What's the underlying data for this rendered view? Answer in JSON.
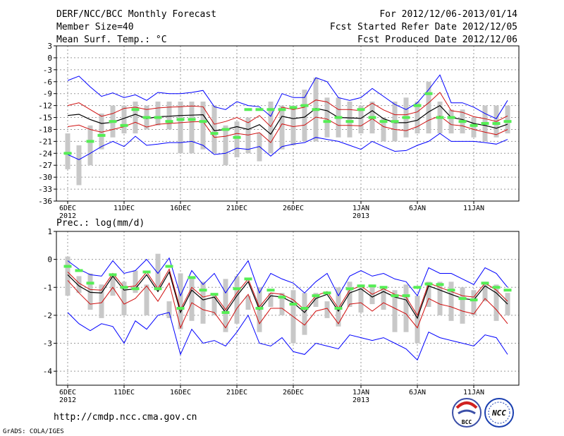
{
  "header": {
    "title": "DERF/NCC/BCC Monthly Forecast",
    "member_size": "Member Size=40",
    "variable_1": "Mean Surf. Temp.: °C",
    "for_range": "For 2012/12/06-2013/01/14",
    "fcst_started": "Fcst Started Refer Date 2012/12/05",
    "fcst_produced": "Fcst Produced Date 2012/12/06"
  },
  "footer": {
    "url": "http://cmdp.ncc.cma.gov.cn",
    "credit": "GrADS: COLA/IGES",
    "logo_bcc": "BCC",
    "logo_ncc": "NCC"
  },
  "colors": {
    "bar": "#c8c8c8",
    "obs": "#55ee55",
    "spread": "#d01010",
    "extreme": "#0000ff",
    "mean": "#000000"
  },
  "chart_data": [
    {
      "type": "line",
      "name": "temperature",
      "title": "Mean Surf. Temp.: °C",
      "ylim": [
        -36,
        3
      ],
      "yticks": [
        3,
        0,
        -3,
        -6,
        -9,
        -12,
        -15,
        -18,
        -21,
        -24,
        -27,
        -30,
        -33,
        -36
      ],
      "xticks": [
        {
          "day": 0,
          "label": "6DEC",
          "sub": "2012"
        },
        {
          "day": 5,
          "label": "11DEC",
          "sub": ""
        },
        {
          "day": 10,
          "label": "16DEC",
          "sub": ""
        },
        {
          "day": 15,
          "label": "21DEC",
          "sub": ""
        },
        {
          "day": 20,
          "label": "26DEC",
          "sub": ""
        },
        {
          "day": 26,
          "label": "1JAN",
          "sub": "2013"
        },
        {
          "day": 31,
          "label": "6JAN",
          "sub": ""
        },
        {
          "day": 36,
          "label": "11JAN",
          "sub": ""
        }
      ],
      "xlim": [
        -1,
        40
      ],
      "bar_low": [
        -28,
        -32,
        -27,
        -23,
        -20,
        -19,
        -19,
        -18,
        -17,
        -18,
        -24,
        -24,
        -23,
        -24,
        -27,
        -25,
        -24,
        -26,
        -24,
        -23,
        -22,
        -21,
        -21,
        -20,
        -20,
        -20,
        -19,
        -19,
        -21,
        -21,
        -20,
        -19,
        -19,
        -19,
        -19,
        -19,
        -20,
        -21,
        -20,
        -19
      ],
      "bar_high": [
        -19,
        -22,
        -17,
        -14,
        -12,
        -12,
        -11,
        -12,
        -11,
        -11,
        -11,
        -11,
        -11,
        -12,
        -17,
        -16,
        -15,
        -19,
        -11,
        -12,
        -12,
        -8,
        -5,
        -10,
        -10,
        -11,
        -12,
        -11,
        -15,
        -11,
        -10,
        -11,
        -6,
        -11,
        -13,
        -13,
        -15,
        -12,
        -12,
        -12
      ],
      "observed": [
        -24,
        null,
        -21,
        -19.5,
        -16,
        -17,
        -13,
        -15,
        -15,
        -16,
        -15.5,
        -15.5,
        -16,
        -19,
        -18,
        -20,
        -13,
        -13,
        -13,
        -13,
        -12.5,
        -12,
        -13,
        -16,
        -15,
        -16,
        -13,
        -15,
        -16,
        -16,
        -15,
        -12,
        -9,
        -15,
        -15,
        -16,
        -17,
        -16.5,
        -16.5,
        -16
      ],
      "mean": [
        -14.5,
        -14.2,
        -15.5,
        -16.5,
        -16.2,
        -15.2,
        -14.2,
        -15.3,
        -14.8,
        -14.7,
        -14.5,
        -14.4,
        -14.3,
        -18.3,
        -18.0,
        -17.3,
        -18.0,
        -16.8,
        -19.2,
        -14.7,
        -15.3,
        -14.9,
        -12.7,
        -13.3,
        -15.0,
        -15.1,
        -15.2,
        -13.3,
        -15.3,
        -16.3,
        -16.3,
        -15.7,
        -13.6,
        -12.0,
        -15.0,
        -15.5,
        -16.5,
        -17.0,
        -17.7,
        -16.7
      ],
      "spread_high": [
        -12.0,
        -11.3,
        -13.0,
        -14.7,
        -14.0,
        -12.7,
        -12.4,
        -13.0,
        -12.6,
        -12.4,
        -12.3,
        -12.1,
        -12.3,
        -16.7,
        -16.0,
        -15.0,
        -16.3,
        -14.5,
        -17.3,
        -12.4,
        -13.0,
        -12.4,
        -10.6,
        -11.1,
        -13.0,
        -13.0,
        -13.3,
        -11.4,
        -13.1,
        -14.3,
        -14.3,
        -13.6,
        -11.3,
        -8.7,
        -13.3,
        -13.7,
        -14.8,
        -15.3,
        -16.0,
        -14.6
      ],
      "spread_low": [
        -17.3,
        -16.9,
        -18.0,
        -18.7,
        -18.0,
        -17.3,
        -16.2,
        -17.4,
        -16.7,
        -16.5,
        -16.3,
        -16.1,
        -16.0,
        -20.0,
        -19.7,
        -19.0,
        -19.4,
        -18.8,
        -21.3,
        -16.6,
        -17.3,
        -16.9,
        -14.9,
        -15.4,
        -17.0,
        -17.0,
        -17.1,
        -15.3,
        -17.3,
        -18.0,
        -18.3,
        -17.3,
        -15.7,
        -14.6,
        -16.8,
        -17.1,
        -18.0,
        -18.7,
        -19.3,
        -18.0
      ],
      "extreme_high": [
        -5.7,
        -4.6,
        -7.3,
        -9.7,
        -8.8,
        -10.0,
        -9.3,
        -10.7,
        -8.7,
        -9.0,
        -9.0,
        -8.7,
        -8.2,
        -12.3,
        -13.0,
        -11.0,
        -12.0,
        -12.3,
        -14.7,
        -9.0,
        -10.0,
        -10.0,
        -5.0,
        -6.0,
        -10.0,
        -10.7,
        -10.0,
        -7.7,
        -9.7,
        -11.7,
        -13.0,
        -11.3,
        -8.0,
        -4.3,
        -11.3,
        -11.3,
        -12.4,
        -14.0,
        -15.3,
        -10.7
      ],
      "extreme_low": [
        -24.3,
        -25.6,
        -24.0,
        -22.3,
        -21.0,
        -22.3,
        -19.7,
        -22.0,
        -21.7,
        -21.3,
        -21.3,
        -21.0,
        -22.0,
        -24.3,
        -24.0,
        -22.7,
        -23.0,
        -22.3,
        -24.7,
        -22.3,
        -21.7,
        -21.3,
        -20.0,
        -20.5,
        -21.0,
        -22.0,
        -23.0,
        -21.0,
        -22.3,
        -23.5,
        -23.3,
        -22.0,
        -21.0,
        -19.0,
        -21.0,
        -21.0,
        -21.0,
        -21.3,
        -21.7,
        -20.5
      ]
    },
    {
      "type": "line",
      "name": "precipitation",
      "title": "Prec.: log(mm/d)",
      "ylim": [
        -4.5,
        1
      ],
      "yticks": [
        1,
        0,
        -1,
        -2,
        -3,
        -4
      ],
      "xticks": [
        {
          "day": 0,
          "label": "6DEC",
          "sub": "2012"
        },
        {
          "day": 5,
          "label": "11DEC",
          "sub": ""
        },
        {
          "day": 10,
          "label": "16DEC",
          "sub": ""
        },
        {
          "day": 15,
          "label": "21DEC",
          "sub": ""
        },
        {
          "day": 20,
          "label": "26DEC",
          "sub": ""
        },
        {
          "day": 26,
          "label": "1JAN",
          "sub": "2013"
        },
        {
          "day": 31,
          "label": "6JAN",
          "sub": ""
        },
        {
          "day": 36,
          "label": "11JAN",
          "sub": ""
        }
      ],
      "xlim": [
        -1,
        40
      ],
      "bar_low": [
        -1.3,
        -1.2,
        -1.8,
        -2.1,
        -1.3,
        -2.0,
        -1.2,
        -2.0,
        -1.0,
        -2.1,
        -2.5,
        -2.2,
        -2.3,
        -2.0,
        -2.6,
        -2.3,
        -1.8,
        -2.6,
        -1.7,
        -2.0,
        -3.0,
        -2.7,
        -1.7,
        -2.1,
        -2.4,
        -1.7,
        -1.9,
        -1.6,
        -1.8,
        -2.6,
        -2.6,
        -3.0,
        -1.7,
        -2.0,
        -2.2,
        -2.3,
        -2.0,
        -1.5,
        -2.2,
        -2.0
      ],
      "bar_high": [
        0.1,
        -0.6,
        -0.5,
        -0.9,
        -0.6,
        -0.8,
        -0.4,
        -0.9,
        0.2,
        -1.5,
        -0.5,
        -0.7,
        -0.8,
        -1.3,
        -0.7,
        -0.6,
        -1.3,
        -1.0,
        -1.2,
        -1.2,
        -1.1,
        -1.2,
        -1.2,
        -1.5,
        -1.0,
        -0.8,
        -0.9,
        -0.9,
        -1.0,
        -1.1,
        -0.9,
        -1.3,
        -0.8,
        -0.8,
        -0.8,
        -1.0,
        -1.1,
        -0.8,
        -0.9,
        -1.2
      ],
      "observed": [
        -0.25,
        -0.4,
        -0.85,
        null,
        -0.55,
        -1.0,
        -1.05,
        -0.45,
        -1.05,
        -0.25,
        -1.75,
        -0.65,
        -1.1,
        -1.25,
        -1.9,
        -1.05,
        -0.7,
        -1.75,
        -1.1,
        -1.35,
        -1.6,
        -1.75,
        -1.3,
        -1.2,
        -1.75,
        -1.05,
        -0.95,
        -0.95,
        -1.0,
        -1.3,
        -1.3,
        -1.0,
        -0.88,
        -0.9,
        -1.1,
        -1.4,
        -1.45,
        -0.85,
        -1.0,
        -1.1
      ],
      "mean": [
        -0.55,
        -0.95,
        -1.18,
        -1.2,
        -0.6,
        -1.1,
        -1.05,
        -0.55,
        -1.15,
        -0.45,
        -1.9,
        -1.1,
        -1.45,
        -1.35,
        -1.9,
        -1.3,
        -0.8,
        -1.8,
        -1.3,
        -1.35,
        -1.55,
        -1.9,
        -1.4,
        -1.25,
        -1.85,
        -1.2,
        -1.05,
        -1.35,
        -1.15,
        -1.35,
        -1.45,
        -2.1,
        -0.95,
        -1.1,
        -1.25,
        -1.4,
        -1.45,
        -0.95,
        -1.2,
        -1.6
      ],
      "spread_high": [
        -0.45,
        -0.85,
        -1.08,
        -1.1,
        -0.5,
        -1.0,
        -0.95,
        -0.45,
        -1.05,
        -0.35,
        -1.8,
        -1.0,
        -1.35,
        -1.25,
        -1.8,
        -1.2,
        -0.7,
        -1.7,
        -1.2,
        -1.25,
        -1.45,
        -1.8,
        -1.3,
        -1.15,
        -1.75,
        -1.1,
        -0.95,
        -1.25,
        -1.05,
        -1.25,
        -1.35,
        -2.0,
        -0.85,
        -1.0,
        -1.15,
        -1.3,
        -1.35,
        -0.85,
        -1.1,
        -1.5
      ],
      "spread_low": [
        -0.75,
        -1.2,
        -1.6,
        -1.55,
        -1.0,
        -1.6,
        -1.4,
        -0.95,
        -1.5,
        -0.85,
        -2.45,
        -1.55,
        -1.8,
        -1.9,
        -2.45,
        -1.75,
        -1.25,
        -2.3,
        -1.75,
        -1.75,
        -2.05,
        -2.35,
        -1.85,
        -1.75,
        -2.3,
        -1.6,
        -1.55,
        -1.85,
        -1.55,
        -1.75,
        -1.95,
        -2.45,
        -1.4,
        -1.6,
        -1.7,
        -1.85,
        -1.95,
        -1.4,
        -1.8,
        -2.3
      ],
      "extreme_high": [
        -0.05,
        -0.35,
        -0.55,
        -0.6,
        -0.05,
        -0.5,
        -0.4,
        0.0,
        -0.5,
        0.05,
        -1.3,
        -0.4,
        -0.9,
        -0.5,
        -1.2,
        -0.6,
        -0.05,
        -1.2,
        -0.5,
        -0.7,
        -0.85,
        -1.2,
        -0.8,
        -0.5,
        -1.3,
        -0.6,
        -0.4,
        -0.6,
        -0.5,
        -0.7,
        -0.8,
        -1.3,
        -0.3,
        -0.5,
        -0.5,
        -0.7,
        -0.9,
        -0.3,
        -0.5,
        -1.0
      ],
      "extreme_low": [
        -1.9,
        -2.3,
        -2.55,
        -2.3,
        -2.4,
        -3.0,
        -2.2,
        -2.5,
        -2.0,
        -1.9,
        -3.4,
        -2.5,
        -3.0,
        -2.9,
        -3.1,
        -2.6,
        -2.0,
        -3.0,
        -3.1,
        -2.8,
        -3.3,
        -3.4,
        -3.0,
        -3.1,
        -3.2,
        -2.7,
        -2.8,
        -2.9,
        -2.8,
        -3.0,
        -3.2,
        -3.6,
        -2.6,
        -2.8,
        -2.9,
        -3.0,
        -3.1,
        -2.7,
        -2.8,
        -3.4
      ]
    }
  ]
}
